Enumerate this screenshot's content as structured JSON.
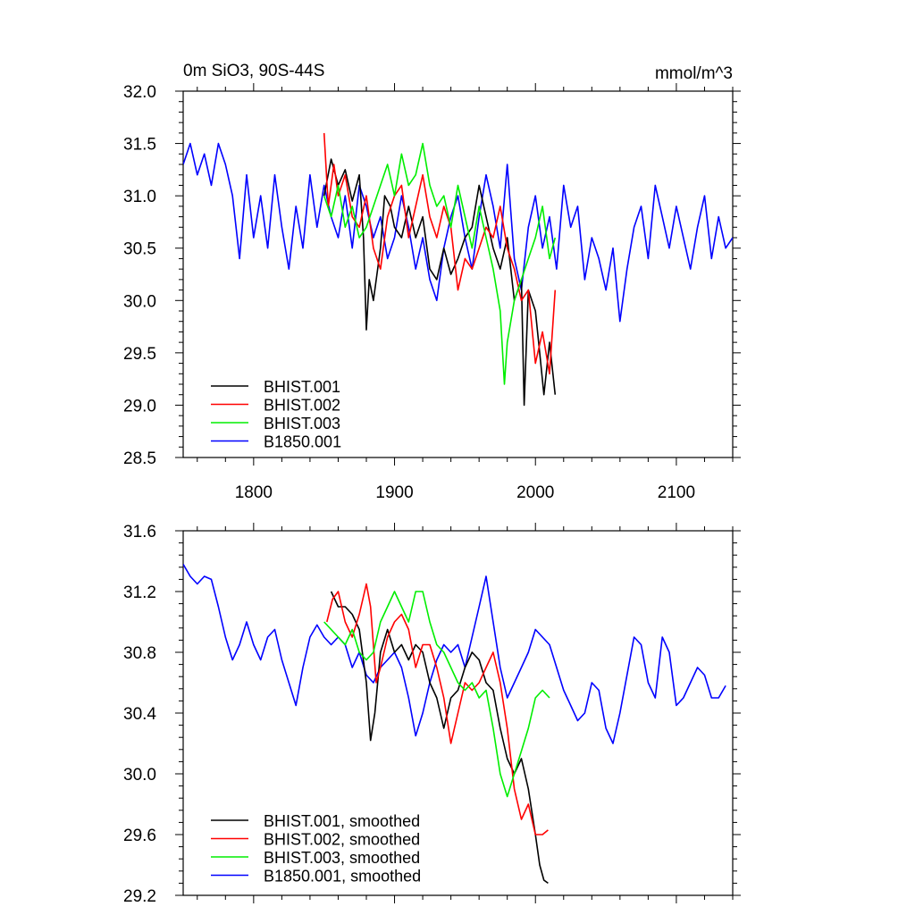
{
  "chart_data": [
    {
      "type": "line",
      "title": "0m SiO3, 90S-44S",
      "units": "mmol/m^3",
      "xlim": [
        1750,
        2140
      ],
      "ylim": [
        28.5,
        32.0
      ],
      "x_ticks": [
        1800,
        1900,
        2000,
        2100
      ],
      "x_tick_labels": [
        "1800",
        "1900",
        "2000",
        "2100"
      ],
      "y_ticks": [
        28.5,
        29.0,
        29.5,
        30.0,
        30.5,
        31.0,
        31.5,
        32.0
      ],
      "y_tick_labels": [
        "28.5",
        "29.0",
        "29.5",
        "30.0",
        "30.5",
        "31.0",
        "31.5",
        "32.0"
      ],
      "legend_position": "bottom-left",
      "series": [
        {
          "name": "BHIST.001",
          "color": "#000000",
          "x": [
            1850,
            1855,
            1860,
            1865,
            1870,
            1875,
            1878,
            1880,
            1882,
            1885,
            1890,
            1893,
            1897,
            1900,
            1905,
            1910,
            1915,
            1920,
            1925,
            1930,
            1935,
            1940,
            1945,
            1950,
            1955,
            1960,
            1965,
            1970,
            1975,
            1980,
            1985,
            1990,
            1992,
            1995,
            2000,
            2003,
            2006,
            2010,
            2014
          ],
          "values": [
            31.0,
            31.35,
            31.1,
            31.25,
            30.95,
            31.2,
            30.6,
            29.72,
            30.2,
            30.0,
            30.5,
            31.0,
            30.9,
            30.7,
            30.6,
            30.9,
            30.6,
            30.8,
            30.3,
            30.2,
            30.5,
            30.25,
            30.4,
            30.6,
            30.7,
            31.1,
            30.8,
            30.5,
            30.3,
            30.6,
            30.0,
            30.2,
            29.0,
            30.1,
            29.9,
            29.5,
            29.1,
            29.6,
            29.1
          ]
        },
        {
          "name": "BHIST.002",
          "color": "#ff0000",
          "x": [
            1850,
            1853,
            1857,
            1860,
            1865,
            1870,
            1875,
            1880,
            1885,
            1890,
            1895,
            1900,
            1905,
            1910,
            1915,
            1920,
            1925,
            1930,
            1935,
            1940,
            1945,
            1950,
            1955,
            1960,
            1965,
            1970,
            1975,
            1980,
            1985,
            1990,
            1995,
            2000,
            2005,
            2010,
            2014
          ],
          "values": [
            31.6,
            30.9,
            31.3,
            31.0,
            31.2,
            30.8,
            30.7,
            31.0,
            30.5,
            30.3,
            30.8,
            31.0,
            31.1,
            30.6,
            30.9,
            31.2,
            30.8,
            30.6,
            30.9,
            30.7,
            30.1,
            30.4,
            30.3,
            30.5,
            30.7,
            30.6,
            30.9,
            30.5,
            30.3,
            30.0,
            30.1,
            29.4,
            29.7,
            29.3,
            30.1
          ]
        },
        {
          "name": "BHIST.003",
          "color": "#00ee00",
          "x": [
            1850,
            1855,
            1860,
            1865,
            1870,
            1875,
            1880,
            1885,
            1890,
            1895,
            1900,
            1905,
            1910,
            1915,
            1920,
            1925,
            1930,
            1935,
            1940,
            1945,
            1950,
            1955,
            1960,
            1965,
            1970,
            1975,
            1978,
            1980,
            1985,
            1990,
            1995,
            2000,
            2005,
            2010,
            2014
          ],
          "values": [
            31.0,
            30.8,
            31.1,
            30.7,
            30.9,
            30.6,
            30.7,
            30.9,
            31.1,
            31.3,
            31.0,
            31.4,
            31.1,
            31.2,
            31.5,
            31.1,
            30.9,
            31.0,
            30.7,
            31.1,
            30.8,
            30.5,
            30.9,
            30.6,
            30.3,
            29.9,
            29.2,
            29.6,
            30.0,
            30.2,
            30.4,
            30.6,
            30.9,
            30.4,
            30.6
          ]
        },
        {
          "name": "B1850.001",
          "color": "#0000ff",
          "x": [
            1750,
            1755,
            1760,
            1765,
            1770,
            1775,
            1780,
            1785,
            1790,
            1795,
            1800,
            1805,
            1810,
            1815,
            1820,
            1825,
            1830,
            1835,
            1840,
            1845,
            1850,
            1855,
            1860,
            1865,
            1870,
            1875,
            1880,
            1885,
            1890,
            1895,
            1900,
            1905,
            1910,
            1915,
            1920,
            1925,
            1930,
            1935,
            1940,
            1945,
            1950,
            1955,
            1960,
            1965,
            1970,
            1975,
            1980,
            1985,
            1990,
            1995,
            2000,
            2005,
            2010,
            2015,
            2020,
            2025,
            2030,
            2035,
            2040,
            2045,
            2050,
            2055,
            2060,
            2065,
            2070,
            2075,
            2080,
            2085,
            2090,
            2095,
            2100,
            2105,
            2110,
            2115,
            2120,
            2125,
            2130,
            2135,
            2140
          ],
          "values": [
            31.3,
            31.5,
            31.2,
            31.4,
            31.1,
            31.5,
            31.3,
            31.0,
            30.4,
            31.2,
            30.6,
            31.0,
            30.5,
            31.2,
            30.7,
            30.3,
            30.9,
            30.5,
            31.2,
            30.7,
            31.1,
            30.8,
            30.6,
            31.0,
            30.5,
            31.1,
            30.9,
            30.6,
            30.8,
            30.4,
            30.6,
            31.0,
            30.7,
            30.3,
            30.6,
            30.2,
            30.0,
            30.5,
            30.8,
            31.0,
            30.6,
            30.3,
            30.8,
            31.2,
            30.9,
            30.5,
            31.3,
            30.4,
            30.1,
            30.7,
            31.0,
            30.5,
            30.8,
            30.3,
            31.1,
            30.7,
            30.9,
            30.2,
            30.6,
            30.4,
            30.1,
            30.5,
            29.8,
            30.3,
            30.7,
            30.9,
            30.4,
            31.1,
            30.8,
            30.5,
            30.9,
            30.6,
            30.3,
            30.7,
            31.0,
            30.4,
            30.8,
            30.5,
            30.6
          ]
        }
      ]
    },
    {
      "type": "line",
      "title": "",
      "xlim": [
        1750,
        2140
      ],
      "ylim": [
        29.2,
        31.6
      ],
      "x_ticks": [
        1800,
        1900,
        2000,
        2100
      ],
      "y_ticks": [
        29.2,
        29.6,
        30.0,
        30.4,
        30.8,
        31.2,
        31.6
      ],
      "y_tick_labels": [
        "29.2",
        "29.6",
        "30.0",
        "30.4",
        "30.8",
        "31.2",
        "31.6"
      ],
      "legend_position": "bottom-left",
      "series": [
        {
          "name": "BHIST.001, smoothed",
          "color": "#000000",
          "x": [
            1855,
            1860,
            1865,
            1870,
            1875,
            1880,
            1883,
            1886,
            1890,
            1895,
            1900,
            1905,
            1910,
            1915,
            1920,
            1925,
            1930,
            1935,
            1940,
            1945,
            1950,
            1955,
            1960,
            1965,
            1970,
            1975,
            1980,
            1985,
            1990,
            1995,
            2000,
            2003,
            2006,
            2009
          ],
          "values": [
            31.2,
            31.1,
            31.1,
            31.05,
            30.95,
            30.6,
            30.22,
            30.4,
            30.8,
            30.95,
            30.8,
            30.85,
            30.75,
            30.85,
            30.8,
            30.6,
            30.5,
            30.3,
            30.5,
            30.55,
            30.7,
            30.8,
            30.75,
            30.6,
            30.55,
            30.3,
            30.1,
            30.0,
            30.1,
            29.9,
            29.6,
            29.4,
            29.3,
            29.28
          ]
        },
        {
          "name": "BHIST.002, smoothed",
          "color": "#ff0000",
          "x": [
            1852,
            1856,
            1860,
            1865,
            1870,
            1875,
            1880,
            1883,
            1887,
            1890,
            1895,
            1900,
            1905,
            1910,
            1915,
            1920,
            1925,
            1930,
            1935,
            1940,
            1945,
            1950,
            1955,
            1960,
            1965,
            1970,
            1975,
            1980,
            1985,
            1990,
            1995,
            2000,
            2005,
            2009
          ],
          "values": [
            31.0,
            31.15,
            31.2,
            31.0,
            30.9,
            31.05,
            31.25,
            31.1,
            30.6,
            30.7,
            30.9,
            31.0,
            31.05,
            30.95,
            30.7,
            30.85,
            30.85,
            30.7,
            30.5,
            30.2,
            30.4,
            30.6,
            30.55,
            30.6,
            30.7,
            30.8,
            30.6,
            30.3,
            29.9,
            29.7,
            29.8,
            29.6,
            29.6,
            29.63
          ]
        },
        {
          "name": "BHIST.003, smoothed",
          "color": "#00ee00",
          "x": [
            1850,
            1855,
            1860,
            1865,
            1870,
            1875,
            1880,
            1885,
            1890,
            1895,
            1900,
            1905,
            1910,
            1915,
            1920,
            1925,
            1930,
            1935,
            1940,
            1945,
            1950,
            1955,
            1960,
            1965,
            1970,
            1975,
            1980,
            1985,
            1990,
            1995,
            2000,
            2005,
            2010
          ],
          "values": [
            31.0,
            30.95,
            30.9,
            30.85,
            30.95,
            30.8,
            30.75,
            30.8,
            31.0,
            31.1,
            31.2,
            31.1,
            31.0,
            31.2,
            31.2,
            31.0,
            30.85,
            30.8,
            30.7,
            30.6,
            30.55,
            30.6,
            30.5,
            30.55,
            30.3,
            30.0,
            29.85,
            30.0,
            30.15,
            30.3,
            30.5,
            30.55,
            30.5
          ]
        },
        {
          "name": "B1850.001, smoothed",
          "color": "#0000ff",
          "x": [
            1750,
            1755,
            1760,
            1765,
            1770,
            1775,
            1780,
            1785,
            1790,
            1795,
            1800,
            1805,
            1810,
            1815,
            1820,
            1825,
            1830,
            1835,
            1840,
            1845,
            1850,
            1855,
            1860,
            1865,
            1870,
            1875,
            1880,
            1885,
            1890,
            1895,
            1900,
            1905,
            1910,
            1915,
            1920,
            1925,
            1930,
            1935,
            1940,
            1945,
            1950,
            1955,
            1960,
            1965,
            1970,
            1975,
            1980,
            1985,
            1990,
            1995,
            2000,
            2005,
            2010,
            2015,
            2020,
            2025,
            2030,
            2035,
            2040,
            2045,
            2050,
            2055,
            2060,
            2065,
            2070,
            2075,
            2080,
            2085,
            2090,
            2095,
            2100,
            2105,
            2110,
            2115,
            2120,
            2125,
            2130,
            2135
          ],
          "values": [
            31.38,
            31.3,
            31.25,
            31.3,
            31.28,
            31.1,
            30.9,
            30.75,
            30.85,
            31.0,
            30.85,
            30.75,
            30.9,
            30.95,
            30.75,
            30.6,
            30.45,
            30.7,
            30.9,
            30.98,
            30.9,
            30.85,
            30.9,
            30.85,
            30.7,
            30.8,
            30.65,
            30.6,
            30.7,
            30.75,
            30.8,
            30.7,
            30.5,
            30.25,
            30.4,
            30.6,
            30.75,
            30.85,
            30.8,
            30.85,
            30.7,
            30.9,
            31.1,
            31.3,
            31.0,
            30.7,
            30.5,
            30.6,
            30.7,
            30.8,
            30.95,
            30.9,
            30.85,
            30.7,
            30.55,
            30.45,
            30.35,
            30.4,
            30.6,
            30.55,
            30.3,
            30.2,
            30.4,
            30.65,
            30.9,
            30.85,
            30.6,
            30.5,
            30.9,
            30.8,
            30.45,
            30.5,
            30.6,
            30.7,
            30.65,
            30.5,
            30.5,
            30.58
          ]
        }
      ]
    }
  ]
}
